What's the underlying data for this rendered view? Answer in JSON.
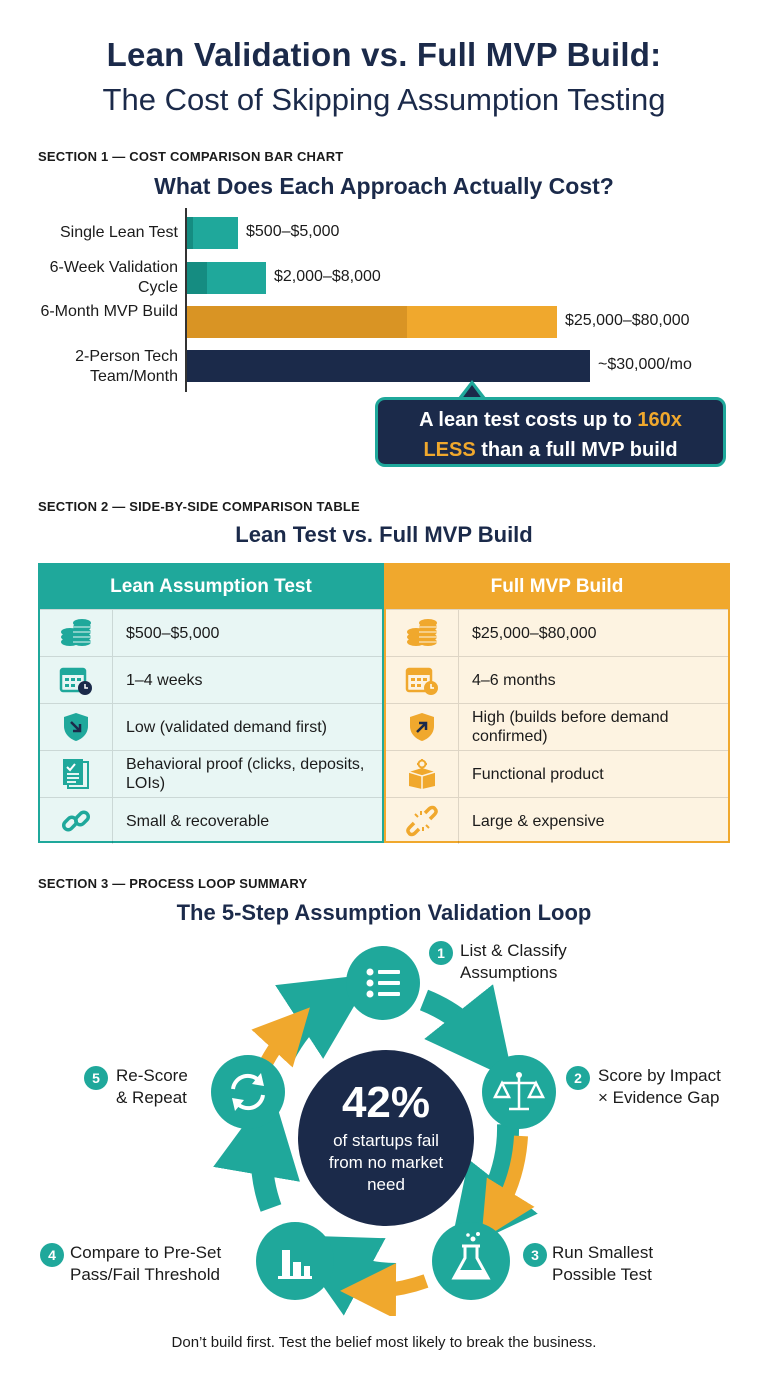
{
  "header": {
    "title_line1": "Lean Validation vs. Full MVP Build:",
    "title_line2": "The Cost of Skipping Assumption Testing"
  },
  "section1": {
    "label": "SECTION 1 — COST COMPARISON BAR CHART",
    "title": "What Does Each Approach Actually Cost?",
    "callout_pre": "A lean test costs up to ",
    "callout_highlight1": "160x",
    "callout_highlight2": "LESS",
    "callout_post": " than a full MVP build"
  },
  "chart_data": {
    "type": "bar",
    "orientation": "horizontal",
    "categories": [
      "Single Lean Test",
      "6-Week Validation Cycle",
      "6-Month MVP Build",
      "2-Person Tech Team/Month"
    ],
    "value_labels": [
      "$500–$5,000",
      "$2,000–$8,000",
      "$25,000–$80,000",
      "~$30,000/mo"
    ],
    "ranges": [
      [
        500,
        5000
      ],
      [
        2000,
        8000
      ],
      [
        25000,
        80000
      ],
      [
        30000,
        30000
      ]
    ],
    "colors": [
      "#1fa89b",
      "#1fa89b",
      "#f0a82d",
      "#1b2a4a"
    ],
    "xlabel": "",
    "ylabel": ""
  },
  "section2": {
    "label": "SECTION 2 — SIDE-BY-SIDE COMPARISON TABLE",
    "title": "Lean Test vs. Full MVP Build",
    "lean_header": "Lean Assumption Test",
    "mvp_header": "Full MVP Build",
    "rows": [
      {
        "icon": "coins-icon",
        "lean": "$500–$5,000",
        "mvp": "$25,000–$80,000"
      },
      {
        "icon": "calendar-icon",
        "lean": "1–4 weeks",
        "mvp": "4–6 months"
      },
      {
        "icon": "shield-icon",
        "lean": "Low (validated demand first)",
        "mvp": "High (builds before demand confirmed)"
      },
      {
        "icon": "evidence-icon",
        "lean": "Behavioral proof (clicks, deposits, LOIs)",
        "mvp": "Functional product"
      },
      {
        "icon": "link-icon",
        "lean": "Small & recoverable",
        "mvp": "Large & expensive"
      }
    ],
    "colors": {
      "lean": "#1fa89b",
      "mvp": "#f0a82d"
    }
  },
  "section3": {
    "label": "SECTION 3 — PROCESS LOOP SUMMARY",
    "title": "The 5-Step Assumption Validation Loop",
    "center_stat": "42%",
    "center_text": "of startups fail from no market need",
    "steps": [
      {
        "num": "1",
        "line1": "List & Classify",
        "line2": "Assumptions",
        "icon": "list-icon"
      },
      {
        "num": "2",
        "line1": "Score by Impact",
        "line2": "× Evidence Gap",
        "icon": "scale-icon"
      },
      {
        "num": "3",
        "line1": "Run Smallest",
        "line2": "Possible Test",
        "icon": "flask-icon"
      },
      {
        "num": "4",
        "line1": "Compare to Pre-Set",
        "line2": "Pass/Fail Threshold",
        "icon": "bar-chart-icon"
      },
      {
        "num": "5",
        "line1": "Re-Score",
        "line2": "& Repeat",
        "icon": "refresh-icon"
      }
    ]
  },
  "footer": {
    "text": "Don’t build first. Test the belief most likely to break the business."
  }
}
